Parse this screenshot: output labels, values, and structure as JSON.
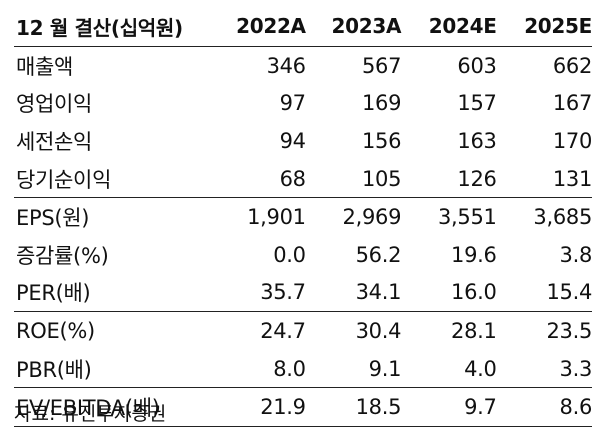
{
  "table": {
    "header": {
      "label": "12 월 결산(십억원)",
      "years": [
        "2022A",
        "2023A",
        "2024E",
        "2025E"
      ]
    },
    "rows": [
      {
        "label": "매출액",
        "values": [
          "346",
          "567",
          "603",
          "662"
        ]
      },
      {
        "label": "영업이익",
        "values": [
          "97",
          "169",
          "157",
          "167"
        ]
      },
      {
        "label": "세전손익",
        "values": [
          "94",
          "156",
          "163",
          "170"
        ]
      },
      {
        "label": "당기순이익",
        "values": [
          "68",
          "105",
          "126",
          "131"
        ]
      },
      {
        "label": "EPS(원)",
        "values": [
          "1,901",
          "2,969",
          "3,551",
          "3,685"
        ]
      },
      {
        "label": "증감률(%)",
        "values": [
          "0.0",
          "56.2",
          "19.6",
          "3.8"
        ]
      },
      {
        "label": "PER(배)",
        "values": [
          "35.7",
          "34.1",
          "16.0",
          "15.4"
        ]
      },
      {
        "label": "ROE(%)",
        "values": [
          "24.7",
          "30.4",
          "28.1",
          "23.5"
        ]
      },
      {
        "label": "PBR(배)",
        "values": [
          "8.0",
          "9.1",
          "4.0",
          "3.3"
        ]
      },
      {
        "label": "EV/EBITDA(배)",
        "values": [
          "21.9",
          "18.5",
          "9.7",
          "8.6"
        ]
      }
    ]
  },
  "source": "자료: 유진투자증권"
}
